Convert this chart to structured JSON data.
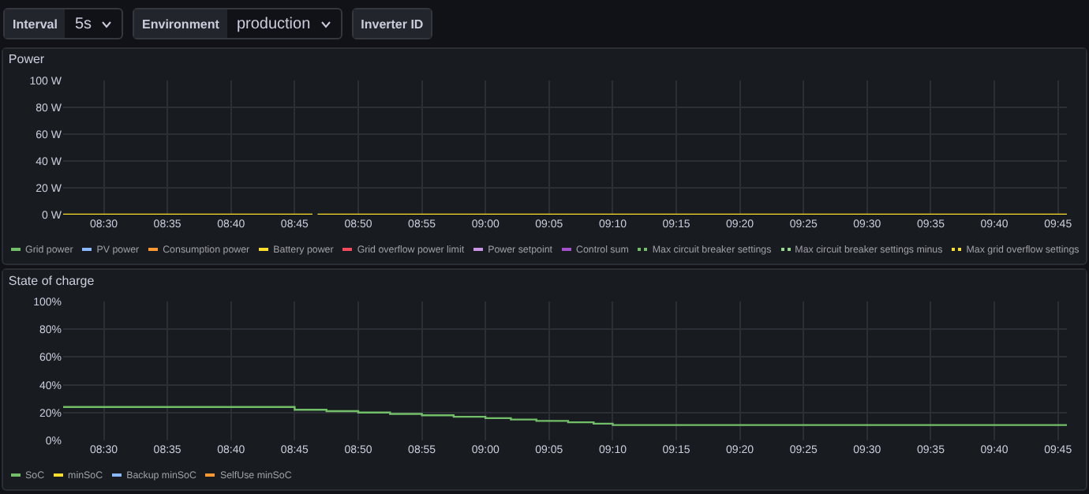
{
  "chart_data": [
    {
      "type": "other",
      "annotations": [
        "Interval",
        "5s",
        "Environment",
        "production",
        "Inverter ID"
      ]
    },
    {
      "type": "line",
      "title": "Power",
      "legend": "bottom",
      "grid": true,
      "marker": "none",
      "xlim": [
        8.4467,
        9.7617
      ],
      "xticks": [
        {
          "value": 8.5,
          "label": "08:30"
        },
        {
          "value": 8.5833,
          "label": "08:35"
        },
        {
          "value": 8.6667,
          "label": "08:40"
        },
        {
          "value": 8.75,
          "label": "08:45"
        },
        {
          "value": 8.8333,
          "label": "08:50"
        },
        {
          "value": 8.9167,
          "label": "08:55"
        },
        {
          "value": 9,
          "label": "09:00"
        },
        {
          "value": 9.0833,
          "label": "09:05"
        },
        {
          "value": 9.1667,
          "label": "09:10"
        },
        {
          "value": 9.25,
          "label": "09:15"
        },
        {
          "value": 9.3333,
          "label": "09:20"
        },
        {
          "value": 9.4167,
          "label": "09:25"
        },
        {
          "value": 9.5,
          "label": "09:30"
        },
        {
          "value": 9.5833,
          "label": "09:35"
        },
        {
          "value": 9.6667,
          "label": "09:40"
        },
        {
          "value": 9.75,
          "label": "09:45"
        }
      ],
      "ylim": [
        0,
        100
      ],
      "yticks": [
        {
          "value": 0,
          "label": "0 W"
        },
        {
          "value": 20,
          "label": "20 W"
        },
        {
          "value": 40,
          "label": "40 W"
        },
        {
          "value": 60,
          "label": "60 W"
        },
        {
          "value": 80,
          "label": "80 W"
        },
        {
          "value": 100,
          "label": "100 W"
        }
      ],
      "x": [
        8.4467,
        8.7733,
        8.7767,
        8.78,
        9.7617
      ],
      "series": [
        {
          "name": "Grid power",
          "color": "#73bf69",
          "values": [
            null,
            null,
            null,
            null,
            null
          ]
        },
        {
          "name": "PV power",
          "color": "#8ab8ff",
          "values": [
            null,
            null,
            null,
            null,
            null
          ]
        },
        {
          "name": "Consumption power",
          "color": "#ff9830",
          "values": [
            null,
            null,
            null,
            null,
            null
          ]
        },
        {
          "name": "Battery power",
          "color": "#fade2a",
          "values": [
            0,
            0,
            null,
            0,
            0
          ]
        },
        {
          "name": "Grid overflow power limit",
          "color": "#f2495c",
          "values": [
            null,
            null,
            null,
            null,
            null
          ]
        },
        {
          "name": "Power setpoint",
          "color": "#ca95e5",
          "values": [
            null,
            null,
            null,
            null,
            null
          ]
        },
        {
          "name": "Control sum",
          "color": "#a352cc",
          "values": [
            null,
            null,
            null,
            null,
            null
          ]
        },
        {
          "name": "Max circuit breaker settings",
          "color": "#73bf69",
          "line_style": "dotted",
          "values": [
            null,
            null,
            null,
            null,
            null
          ]
        },
        {
          "name": "Max circuit breaker settings minus",
          "color": "#96d98d",
          "line_style": "dotted",
          "values": [
            null,
            null,
            null,
            null,
            null
          ]
        },
        {
          "name": "Max grid overflow settings",
          "color": "#fade2a",
          "line_style": "dotted",
          "values": [
            null,
            null,
            null,
            null,
            null
          ]
        }
      ]
    },
    {
      "type": "step",
      "title": "State of charge",
      "legend": "bottom",
      "grid": true,
      "marker": "none",
      "xlim": [
        8.4467,
        9.7617
      ],
      "xticks": [
        {
          "value": 8.5,
          "label": "08:30"
        },
        {
          "value": 8.5833,
          "label": "08:35"
        },
        {
          "value": 8.6667,
          "label": "08:40"
        },
        {
          "value": 8.75,
          "label": "08:45"
        },
        {
          "value": 8.8333,
          "label": "08:50"
        },
        {
          "value": 8.9167,
          "label": "08:55"
        },
        {
          "value": 9,
          "label": "09:00"
        },
        {
          "value": 9.0833,
          "label": "09:05"
        },
        {
          "value": 9.1667,
          "label": "09:10"
        },
        {
          "value": 9.25,
          "label": "09:15"
        },
        {
          "value": 9.3333,
          "label": "09:20"
        },
        {
          "value": 9.4167,
          "label": "09:25"
        },
        {
          "value": 9.5,
          "label": "09:30"
        },
        {
          "value": 9.5833,
          "label": "09:35"
        },
        {
          "value": 9.6667,
          "label": "09:40"
        },
        {
          "value": 9.75,
          "label": "09:45"
        }
      ],
      "ylim": [
        0,
        100
      ],
      "yticks": [
        {
          "value": 0,
          "label": "0%"
        },
        {
          "value": 20,
          "label": "20%"
        },
        {
          "value": 40,
          "label": "40%"
        },
        {
          "value": 60,
          "label": "60%"
        },
        {
          "value": 80,
          "label": "80%"
        },
        {
          "value": 100,
          "label": "100%"
        }
      ],
      "x": [
        8.4467,
        8.75,
        8.7917,
        8.8333,
        8.875,
        8.9167,
        8.9583,
        9,
        9.0333,
        9.0667,
        9.1083,
        9.1417,
        9.1667,
        9.2167,
        9.7617
      ],
      "series": [
        {
          "name": "SoC",
          "color": "#73bf69",
          "values": [
            24,
            22,
            21,
            20,
            19,
            18,
            17,
            16,
            15,
            14,
            13,
            12,
            11,
            11,
            11
          ]
        },
        {
          "name": "minSoC",
          "color": "#fade2a",
          "values": [
            null,
            null,
            null,
            null,
            null,
            null,
            null,
            null,
            null,
            null,
            null,
            null,
            null,
            null,
            null
          ]
        },
        {
          "name": "Backup minSoC",
          "color": "#8ab8ff",
          "values": [
            null,
            null,
            null,
            null,
            null,
            null,
            null,
            null,
            null,
            null,
            null,
            null,
            null,
            null,
            null
          ]
        },
        {
          "name": "SelfUse minSoC",
          "color": "#ff9830",
          "values": [
            null,
            null,
            null,
            null,
            null,
            null,
            null,
            null,
            null,
            null,
            null,
            null,
            null,
            null,
            null
          ]
        }
      ]
    }
  ]
}
